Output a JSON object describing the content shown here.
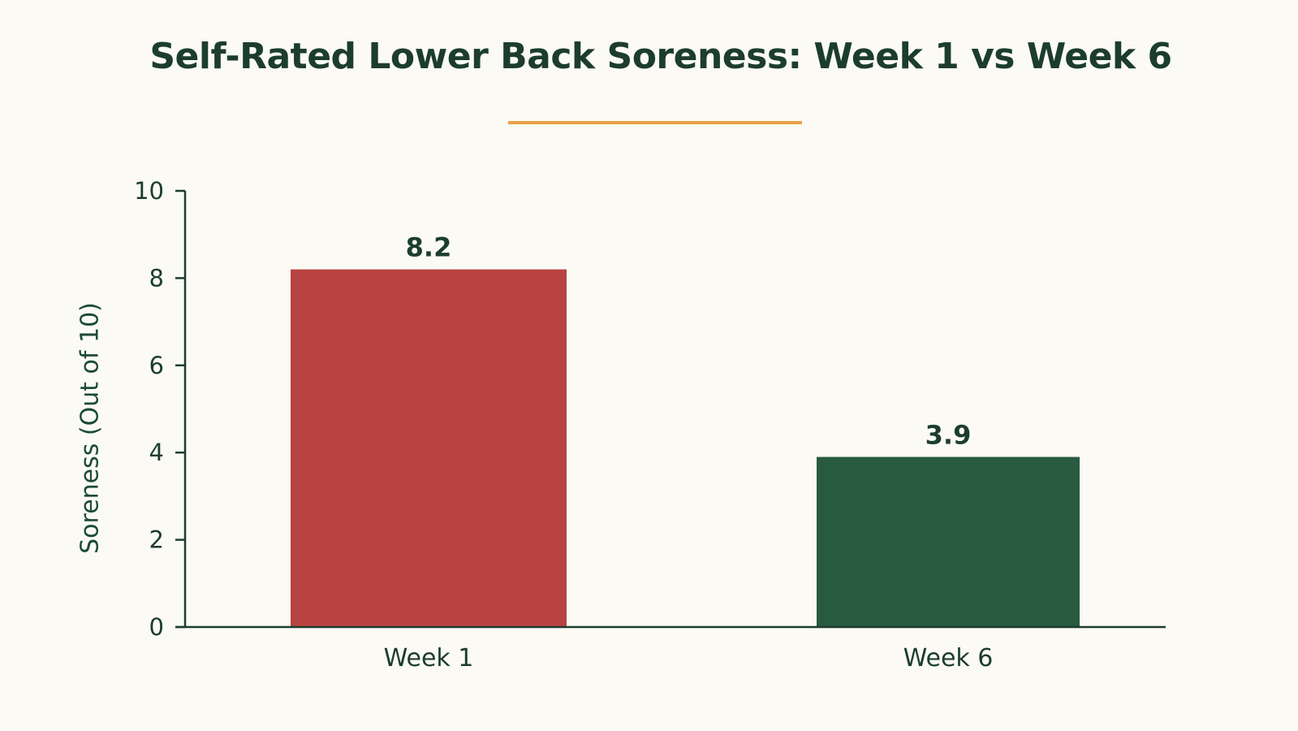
{
  "chart_data": {
    "type": "bar",
    "title": "Self-Rated Lower Back Soreness: Week 1 vs Week 6",
    "xlabel": "",
    "ylabel": "Soreness (Out of 10)",
    "categories": [
      "Week 1",
      "Week 6"
    ],
    "values": [
      8.2,
      3.9
    ],
    "data_labels": [
      "8.2",
      "3.9"
    ],
    "bar_colors": [
      "#b94340",
      "#285a40"
    ],
    "ylim": [
      0,
      10
    ],
    "yticks": [
      0,
      2,
      4,
      6,
      8,
      10
    ],
    "ytick_labels": [
      "0",
      "2",
      "4",
      "6",
      "8",
      "10"
    ],
    "grid": false,
    "legend": "none"
  },
  "colors": {
    "background": "#fbfaf5",
    "text": "#1c3d2e",
    "title_accent": "#e8a147",
    "axis": "#1c3d2e"
  }
}
